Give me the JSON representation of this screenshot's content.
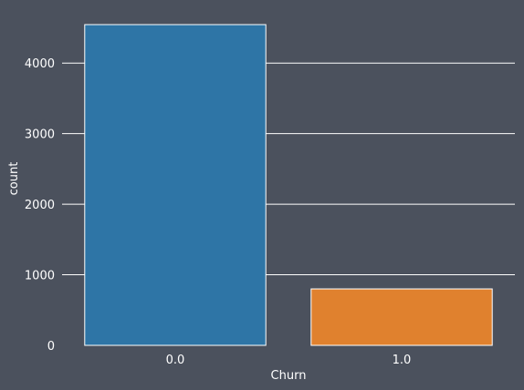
{
  "chart_data": {
    "type": "bar",
    "categories": [
      "0.0",
      "1.0"
    ],
    "values": [
      4545,
      800
    ],
    "xlabel": "Churn",
    "ylabel": "count",
    "ylim": [
      0,
      4700
    ],
    "yticks": [
      0,
      1000,
      2000,
      3000,
      4000
    ],
    "grid": "y",
    "colors": {
      "background": "#4b515d",
      "bars": [
        "#2e75a6",
        "#e0812e"
      ],
      "bar_edge": "#ffffff",
      "grid": "#ffffff",
      "text": "#ffffff"
    }
  }
}
